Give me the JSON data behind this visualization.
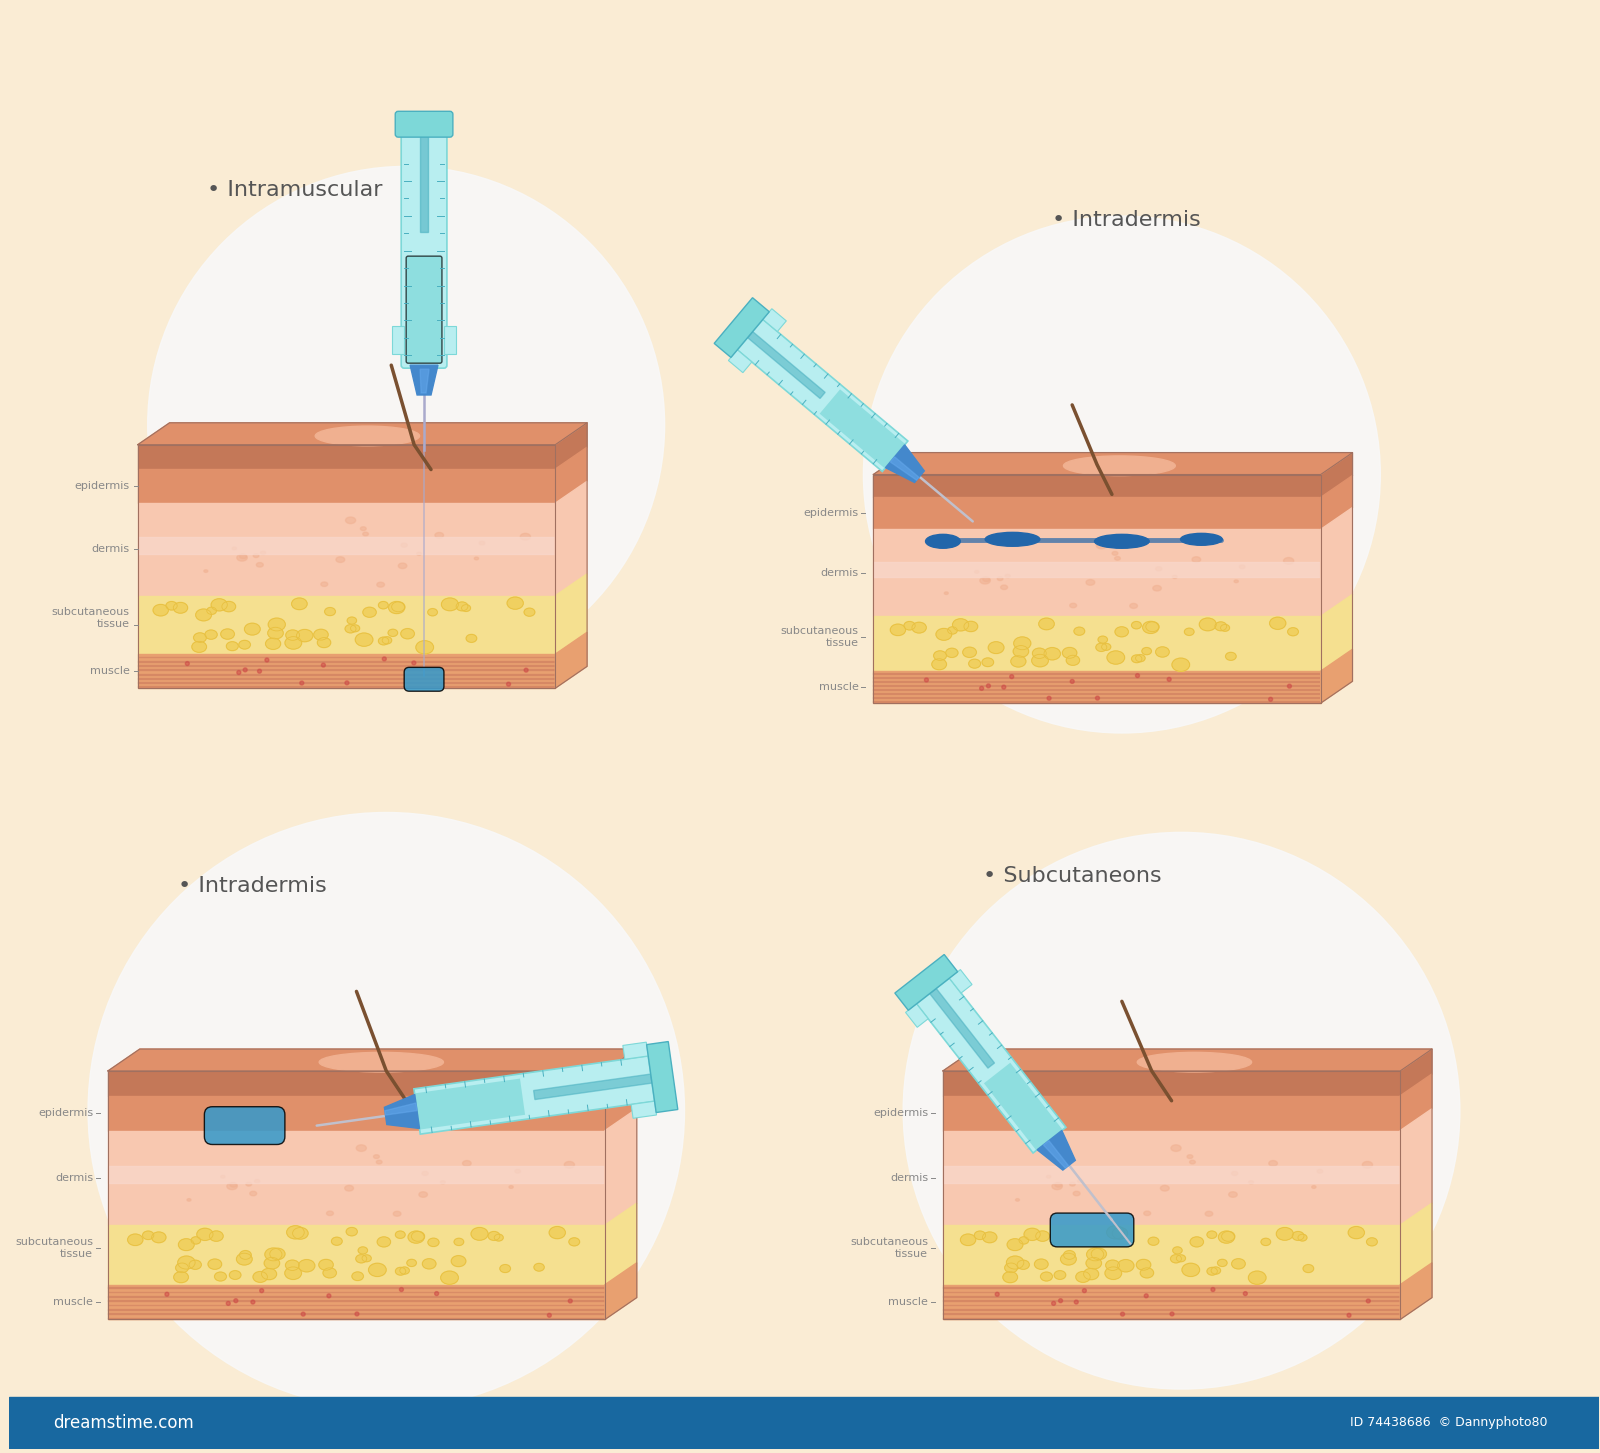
{
  "background_color": "#faecd4",
  "title1": "Intramuscular",
  "title2": "Intradermis",
  "title3": "Intradermis",
  "title4": "Subcutaneons",
  "label_color": "#888888",
  "title_color": "#555555",
  "syringe_teal": "#7dd8d8",
  "syringe_light": "#b8eef0",
  "syringe_dark": "#4ab0c0",
  "syringe_hub": "#4488cc",
  "syringe_needle": "#c0c0cc",
  "fluid_blue": "#3399cc",
  "skin_top": "#c47858",
  "skin_epi": "#e0906a",
  "skin_epi2": "#f0b090",
  "skin_derm": "#f8c8b0",
  "skin_derm2": "#fad0c0",
  "skin_pink": "#f8d8cc",
  "skin_sub": "#f0d060",
  "skin_sub2": "#e8c040",
  "skin_muscle": "#e8a070",
  "skin_stripe": "#d08060",
  "skin_right": "#c07050",
  "skin_bottom": "#d08868",
  "white_circle": "#f8f8f8",
  "label_fs": 8.5,
  "title_fs": 16
}
